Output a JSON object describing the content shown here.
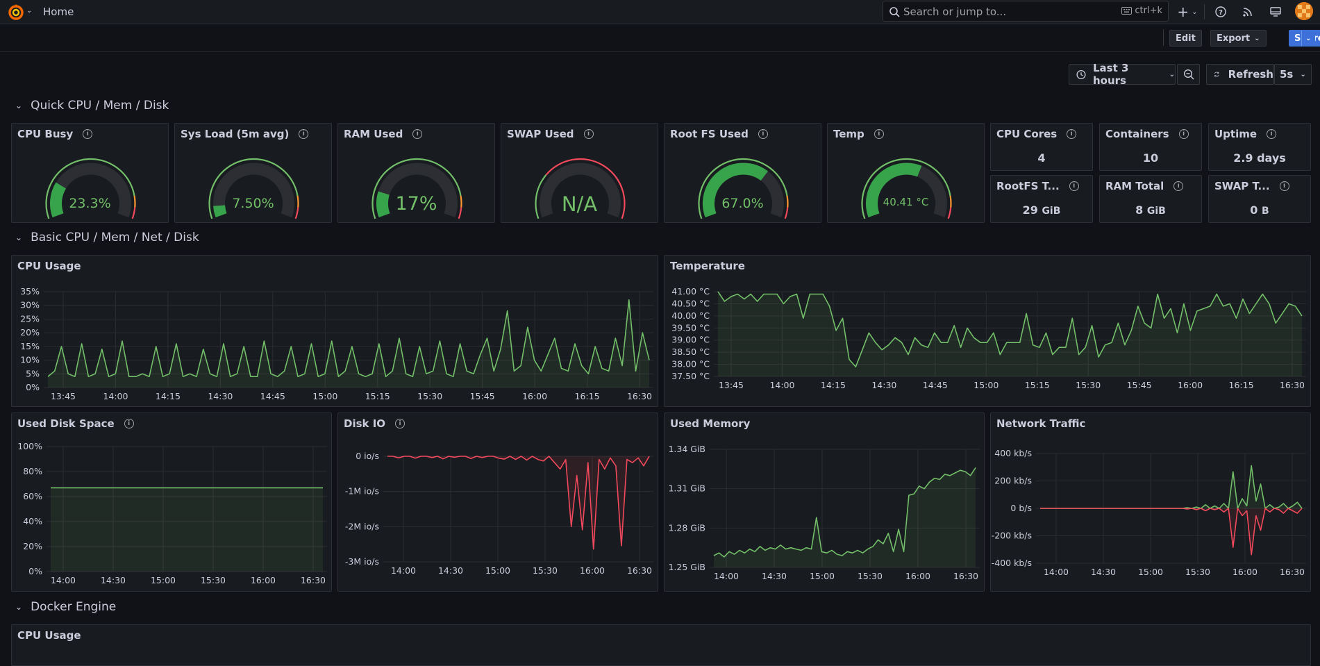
{
  "header": {
    "breadcrumb": "Home",
    "search_placeholder": "Search or jump to...",
    "search_shortcut": "ctrl+k"
  },
  "toolbar": {
    "edit": "Edit",
    "export": "Export",
    "share": "Share",
    "time_range": "Last 3 hours",
    "refresh": "Refresh",
    "refresh_interval": "5s"
  },
  "rows": [
    {
      "title": "Quick CPU / Mem / Disk"
    },
    {
      "title": "Basic CPU / Mem / Net / Disk"
    },
    {
      "title": "Docker Engine"
    }
  ],
  "gauges": [
    {
      "title": "CPU Busy",
      "value": "23.3%",
      "fraction": 0.233
    },
    {
      "title": "Sys Load (5m avg)",
      "value": "7.50%",
      "fraction": 0.075
    },
    {
      "title": "RAM Used",
      "value": "17%",
      "fraction": 0.17
    },
    {
      "title": "SWAP Used",
      "value": "N/A",
      "fraction": 0
    },
    {
      "title": "Root FS Used",
      "value": "67.0%",
      "fraction": 0.67
    },
    {
      "title": "Temp",
      "value": "40.41 °C",
      "fraction": 0.6
    }
  ],
  "stats": [
    {
      "title": "CPU Cores",
      "value": "4",
      "unit": ""
    },
    {
      "title": "Containers",
      "value": "10",
      "unit": ""
    },
    {
      "title": "Uptime",
      "value": "2.9 days",
      "unit": ""
    },
    {
      "title": "RootFS T...",
      "value": "29",
      "unit": "GiB"
    },
    {
      "title": "RAM Total",
      "value": "8",
      "unit": "GiB"
    },
    {
      "title": "SWAP T...",
      "value": "0",
      "unit": "B"
    }
  ],
  "panels": {
    "cpu_usage": "CPU Usage",
    "temperature": "Temperature",
    "used_disk": "Used Disk Space",
    "disk_io": "Disk IO",
    "used_memory": "Used Memory",
    "network": "Network Traffic",
    "docker_cpu": "CPU Usage"
  },
  "chart_data": [
    {
      "type": "line",
      "title": "CPU Usage",
      "ylim": [
        0,
        35
      ],
      "yticks": [
        "35%",
        "30%",
        "25%",
        "20%",
        "15%",
        "10%",
        "5%",
        "0%"
      ],
      "xticks": [
        "13:45",
        "14:00",
        "14:15",
        "14:30",
        "14:45",
        "15:00",
        "15:15",
        "15:30",
        "15:45",
        "16:00",
        "16:15",
        "16:30"
      ],
      "series": [
        {
          "color": "#73bf69",
          "values": [
            4,
            6,
            15,
            5,
            4,
            16,
            4,
            5,
            14,
            4,
            5,
            17,
            4,
            4,
            5,
            4,
            15,
            4,
            5,
            16,
            4,
            5,
            4,
            14,
            5,
            4,
            16,
            4,
            5,
            15,
            4,
            4,
            17,
            5,
            4,
            6,
            15,
            4,
            5,
            16,
            4,
            5,
            17,
            4,
            6,
            15,
            5,
            4,
            5,
            16,
            4,
            6,
            18,
            5,
            4,
            15,
            5,
            6,
            17,
            5,
            4,
            16,
            6,
            5,
            12,
            18,
            6,
            14,
            28,
            6,
            8,
            22,
            10,
            6,
            12,
            18,
            7,
            6,
            16,
            8,
            5,
            15,
            7,
            6,
            18,
            8,
            32,
            6,
            20,
            10
          ]
        }
      ]
    },
    {
      "type": "line",
      "title": "Temperature",
      "ylim": [
        37.5,
        41.0
      ],
      "yticks": [
        "41.00 °C",
        "40.50 °C",
        "40.00 °C",
        "39.50 °C",
        "39.00 °C",
        "38.50 °C",
        "38.00 °C",
        "37.50 °C"
      ],
      "xticks": [
        "13:45",
        "14:00",
        "14:15",
        "14:30",
        "14:45",
        "15:00",
        "15:15",
        "15:30",
        "15:45",
        "16:00",
        "16:15",
        "16:30"
      ],
      "series": [
        {
          "color": "#73bf69",
          "values": [
            41,
            40.6,
            40.8,
            40.9,
            40.7,
            40.9,
            40.6,
            40.9,
            40.9,
            40.9,
            40.5,
            40.8,
            40.9,
            39.9,
            40.9,
            40.9,
            40.9,
            40.4,
            39.4,
            39.9,
            38.2,
            37.9,
            38.6,
            39.3,
            38.9,
            38.6,
            38.8,
            39.1,
            38.9,
            38.4,
            39.1,
            38.8,
            38.7,
            39.3,
            38.9,
            38.9,
            39.6,
            38.7,
            39.5,
            39.1,
            38.9,
            38.9,
            39.3,
            38.4,
            38.9,
            38.9,
            38.9,
            40.1,
            38.8,
            38.7,
            39.3,
            38.4,
            38.7,
            38.7,
            39.9,
            38.4,
            38.7,
            39.6,
            38.3,
            38.8,
            38.9,
            39.7,
            38.8,
            39.4,
            40.4,
            39.7,
            39.5,
            40.9,
            39.9,
            40.3,
            39.3,
            40.5,
            39.4,
            40.2,
            40.3,
            40.4,
            40.9,
            40.4,
            40.5,
            39.9,
            40.7,
            40.1,
            40.5,
            40.9,
            40.5,
            39.7,
            40.1,
            40.5,
            40.4,
            40.0
          ]
        }
      ]
    },
    {
      "type": "area",
      "title": "Used Disk Space",
      "ylim": [
        0,
        100
      ],
      "yticks": [
        "100%",
        "80%",
        "60%",
        "40%",
        "20%",
        "0%"
      ],
      "xticks": [
        "14:00",
        "14:30",
        "15:00",
        "15:30",
        "16:00",
        "16:30"
      ],
      "series": [
        {
          "color": "#73bf69",
          "values": [
            67,
            67
          ]
        }
      ]
    },
    {
      "type": "line",
      "title": "Disk IO",
      "ylim": [
        -3300000,
        0
      ],
      "yticks": [
        "0 io/s",
        "-1M io/s",
        "-2M io/s",
        "-3M io/s"
      ],
      "xticks": [
        "14:00",
        "14:30",
        "15:00",
        "15:30",
        "16:00",
        "16:30"
      ],
      "series": [
        {
          "color": "#f2495c",
          "values": [
            0,
            0,
            -50000,
            0,
            0,
            -60000,
            0,
            0,
            -40000,
            0,
            -80000,
            0,
            -30000,
            0,
            0,
            -70000,
            0,
            -40000,
            0,
            0,
            -60000,
            -90000,
            0,
            -100000,
            0,
            -120000,
            0,
            -100000,
            -150000,
            0,
            -200000,
            -400000,
            -100000,
            -2200000,
            -600000,
            -2300000,
            -200000,
            -2900000,
            -100000,
            -400000,
            -50000,
            -300000,
            -2800000,
            -100000,
            -200000,
            -50000,
            -300000,
            0
          ]
        }
      ]
    },
    {
      "type": "line",
      "title": "Used Memory",
      "ylim": [
        1.25,
        1.34
      ],
      "yticks": [
        "1.34 GiB",
        "1.31 GiB",
        "1.28 GiB",
        "1.25 GiB"
      ],
      "xticks": [
        "14:00",
        "14:30",
        "15:00",
        "15:30",
        "16:00",
        "16:30"
      ],
      "series": [
        {
          "color": "#73bf69",
          "values": [
            1.259,
            1.261,
            1.258,
            1.262,
            1.26,
            1.263,
            1.261,
            1.264,
            1.262,
            1.266,
            1.263,
            1.265,
            1.264,
            1.267,
            1.264,
            1.265,
            1.264,
            1.263,
            1.265,
            1.264,
            1.288,
            1.262,
            1.261,
            1.263,
            1.26,
            1.259,
            1.262,
            1.261,
            1.263,
            1.261,
            1.264,
            1.266,
            1.271,
            1.268,
            1.276,
            1.262,
            1.279,
            1.262,
            1.305,
            1.306,
            1.312,
            1.31,
            1.315,
            1.318,
            1.317,
            1.321,
            1.32,
            1.322,
            1.324,
            1.323,
            1.32,
            1.326
          ]
        }
      ]
    },
    {
      "type": "line",
      "title": "Network Traffic",
      "ylim": [
        -450,
        450
      ],
      "yticks": [
        "400 kb/s",
        "200 kb/s",
        "0 b/s",
        "-200 kb/s",
        "-400 kb/s"
      ],
      "xticks": [
        "14:00",
        "14:30",
        "15:00",
        "15:30",
        "16:00",
        "16:30"
      ],
      "series": [
        {
          "color": "#73bf69",
          "values": [
            0,
            0,
            0,
            0,
            0,
            0,
            0,
            0,
            0,
            0,
            0,
            0,
            0,
            0,
            0,
            0,
            0,
            0,
            0,
            0,
            0,
            0,
            0,
            0,
            0,
            0,
            0,
            0,
            0,
            0,
            0,
            0,
            5,
            0,
            10,
            0,
            30,
            0,
            20,
            0,
            40,
            0,
            300,
            0,
            80,
            20,
            350,
            60,
            200,
            0,
            30,
            0,
            10,
            40,
            0,
            20,
            50,
            0
          ]
        },
        {
          "color": "#f2495c",
          "values": [
            0,
            0,
            0,
            0,
            0,
            0,
            0,
            0,
            0,
            0,
            0,
            0,
            0,
            0,
            0,
            0,
            0,
            0,
            0,
            0,
            0,
            0,
            0,
            0,
            0,
            0,
            0,
            0,
            0,
            0,
            0,
            0,
            -5,
            0,
            -10,
            0,
            -20,
            0,
            -10,
            0,
            -30,
            0,
            -320,
            0,
            -60,
            -20,
            -380,
            -60,
            -180,
            0,
            -30,
            0,
            -10,
            -40,
            0,
            -20,
            -40,
            0
          ]
        }
      ]
    }
  ]
}
